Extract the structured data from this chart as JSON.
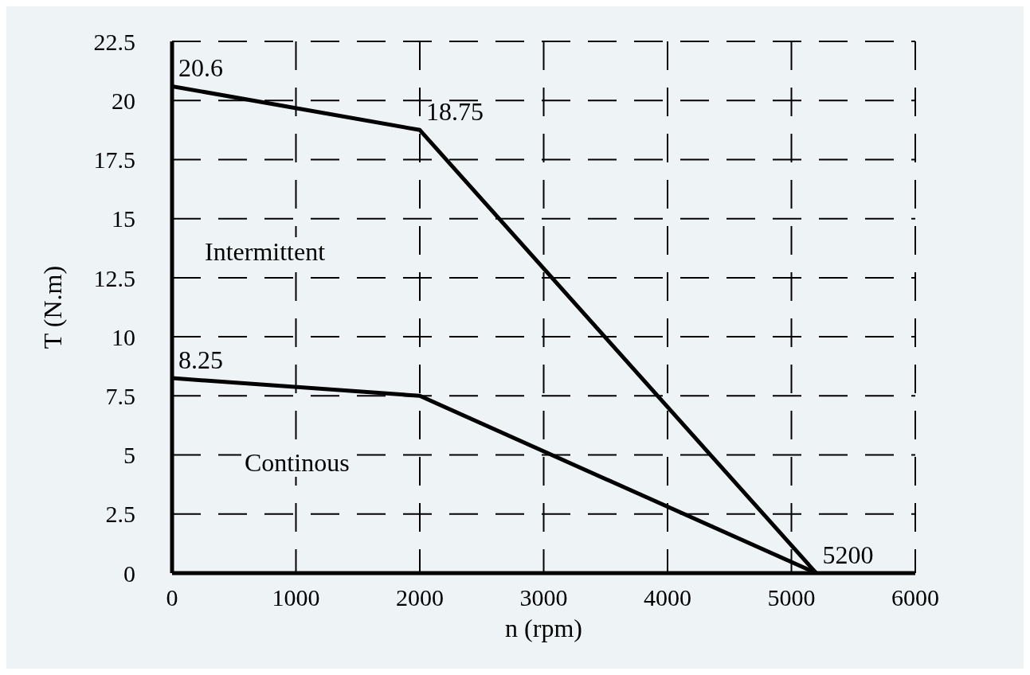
{
  "chart_data": {
    "type": "line",
    "xlabel": "n (rpm)",
    "ylabel": "T (N.m)",
    "series": [
      {
        "color": "#000000",
        "x": [
          0,
          2000,
          5200
        ],
        "values": [
          20.6,
          18.75,
          0
        ]
      },
      {
        "color": "#000000",
        "x": [
          0,
          2000,
          5200
        ],
        "values": [
          8.25,
          7.5,
          0
        ]
      }
    ],
    "xlim": [
      0,
      6000
    ],
    "xticks": [
      0,
      1000,
      2000,
      3000,
      4000,
      5000,
      6000
    ],
    "ylim": [
      0,
      22.5
    ],
    "yticks": [
      0,
      2.5,
      5,
      7.5,
      10,
      12.5,
      15,
      17.5,
      20,
      22.5
    ],
    "grid": true,
    "legend": false,
    "marker": "none",
    "line_style": "solid",
    "annotations": [
      {
        "text": "20.6",
        "x": 0,
        "y": 20.6
      },
      {
        "text": "18.75",
        "x": 2000,
        "y": 18.75
      },
      {
        "text": "8.25",
        "x": 0,
        "y": 8.25
      },
      {
        "text": "5200",
        "x": 5200,
        "y": 0
      },
      "Intermittent",
      "Continous"
    ]
  }
}
